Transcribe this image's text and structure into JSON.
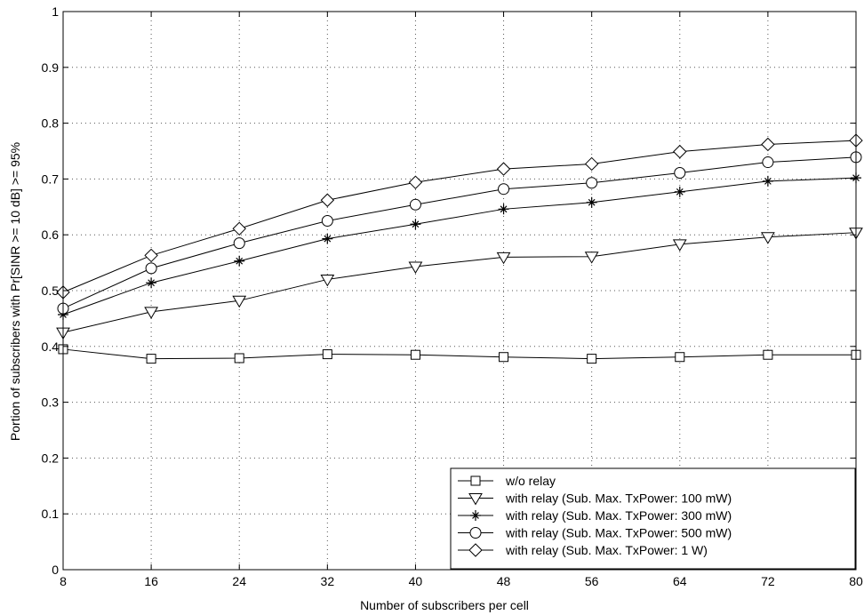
{
  "chart_data": {
    "type": "line",
    "title": "",
    "xlabel": "Number of subscribers per cell",
    "ylabel": "Portion of subscribers with Pr[SINR >= 10 dB] >= 95%",
    "xlim": [
      8,
      80
    ],
    "ylim": [
      0,
      1
    ],
    "x_ticks": [
      8,
      16,
      24,
      32,
      40,
      48,
      56,
      64,
      72,
      80
    ],
    "y_ticks": [
      0,
      0.1,
      0.2,
      0.3,
      0.4,
      0.5,
      0.6,
      0.7,
      0.8,
      0.9,
      1
    ],
    "y_tick_labels": [
      "0",
      "0.1",
      "0.2",
      "0.3",
      "0.4",
      "0.5",
      "0.6",
      "0.7",
      "0.8",
      "0.9",
      "1"
    ],
    "grid": true,
    "legend_position": "bottom-right",
    "x": [
      8,
      16,
      24,
      32,
      40,
      48,
      56,
      64,
      72,
      80
    ],
    "series": [
      {
        "name": "w/o relay",
        "marker": "square",
        "values": [
          0.395,
          0.378,
          0.379,
          0.386,
          0.385,
          0.381,
          0.378,
          0.381,
          0.385,
          0.385
        ]
      },
      {
        "name": "with relay (Sub. Max. TxPower: 100 mW)",
        "marker": "triangle-down",
        "values": [
          0.425,
          0.462,
          0.482,
          0.52,
          0.543,
          0.56,
          0.561,
          0.583,
          0.596,
          0.604
        ]
      },
      {
        "name": "with relay (Sub. Max. TxPower: 300 mW)",
        "marker": "star",
        "values": [
          0.457,
          0.514,
          0.553,
          0.593,
          0.619,
          0.646,
          0.658,
          0.677,
          0.696,
          0.702
        ]
      },
      {
        "name": "with relay (Sub. Max. TxPower: 500 mW)",
        "marker": "circle",
        "values": [
          0.468,
          0.54,
          0.585,
          0.625,
          0.654,
          0.682,
          0.693,
          0.711,
          0.73,
          0.739
        ]
      },
      {
        "name": "with relay (Sub. Max. TxPower: 1 W)",
        "marker": "diamond",
        "values": [
          0.497,
          0.563,
          0.611,
          0.662,
          0.694,
          0.718,
          0.727,
          0.749,
          0.762,
          0.769
        ]
      }
    ]
  }
}
